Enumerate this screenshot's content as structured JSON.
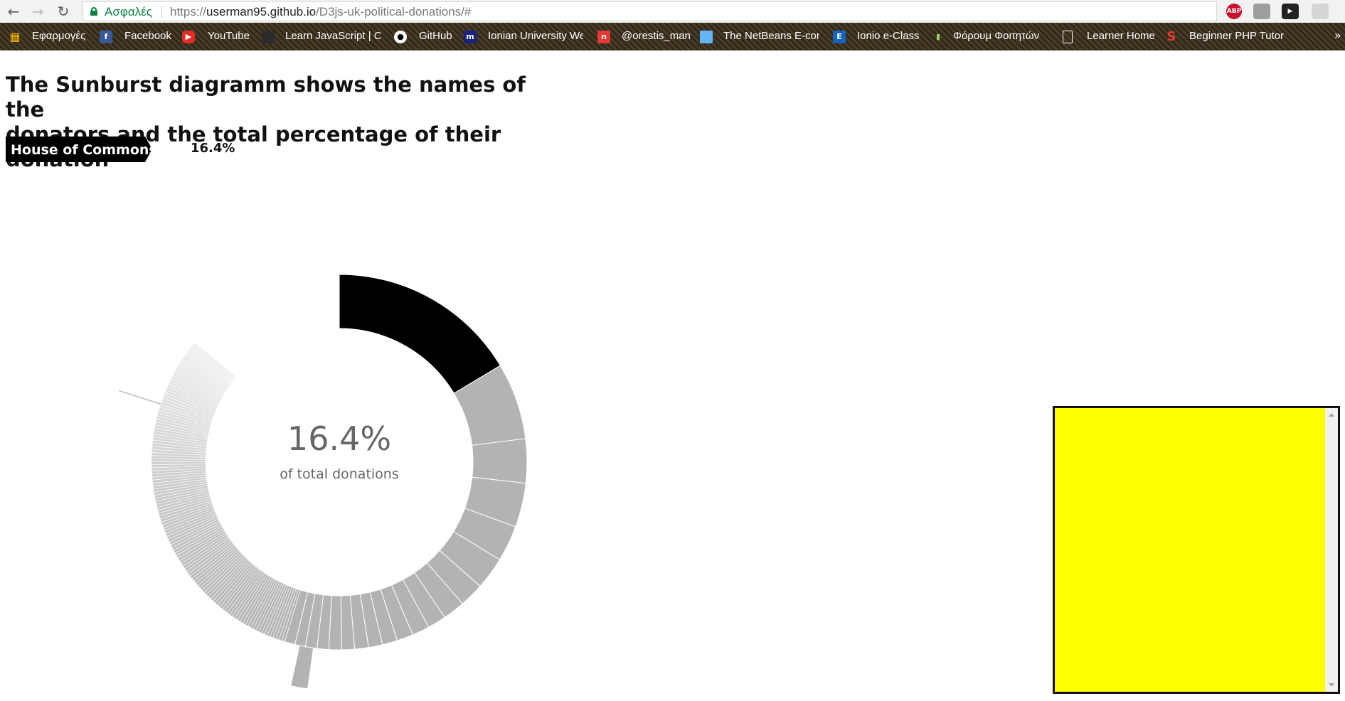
{
  "browser": {
    "secure_label": "Ασφαλές",
    "url_scheme": "https://",
    "url_host": "userman95.github.io",
    "url_path": "/D3js-uk-political-donations/#",
    "extensions": [
      "ABP"
    ]
  },
  "bookmarks": [
    {
      "label": "Εφαρμογές",
      "icon": "apps-grid-icon"
    },
    {
      "label": "Facebook",
      "icon": "facebook-icon"
    },
    {
      "label": "YouTube",
      "icon": "youtube-icon"
    },
    {
      "label": "Learn JavaScript | Co",
      "icon": "codecademy-icon"
    },
    {
      "label": "GitHub",
      "icon": "github-icon"
    },
    {
      "label": "Ionian University We",
      "icon": "ionian-icon"
    },
    {
      "label": "@orestis_man",
      "icon": "orestis-icon"
    },
    {
      "label": "The NetBeans E-com",
      "icon": "netbeans-icon"
    },
    {
      "label": "Ionio e-Class",
      "icon": "eclass-icon"
    },
    {
      "label": "Φόρουμ Φοιτητών",
      "icon": "forum-icon"
    },
    {
      "label": "Learner Home",
      "icon": "page-icon"
    },
    {
      "label": "Beginner PHP Tutori",
      "icon": "sololearn-icon"
    }
  ],
  "page": {
    "title_line1": "The Sunburst diagramm shows the names of the",
    "title_line2": "donators and the total percentage of their donation",
    "breadcrumb": "House of Commons",
    "breadcrumb_percent": "16.4%"
  },
  "chart_data": {
    "type": "sunburst",
    "center_value": "16.4%",
    "center_label": "of total donations",
    "highlighted_share": 0.164,
    "colors": {
      "highlight": "#000000",
      "other": "#b3b3b3",
      "fade": "#e6e6e6"
    },
    "ring_segment_shares": [
      0.164,
      0.066,
      0.038,
      0.038,
      0.031,
      0.028,
      0.021,
      0.019,
      0.016,
      0.015,
      0.014,
      0.013,
      0.012,
      0.012,
      0.011,
      0.011,
      0.01,
      0.01,
      0.009,
      0.009
    ]
  },
  "widget": {
    "background": "#ffff00"
  }
}
